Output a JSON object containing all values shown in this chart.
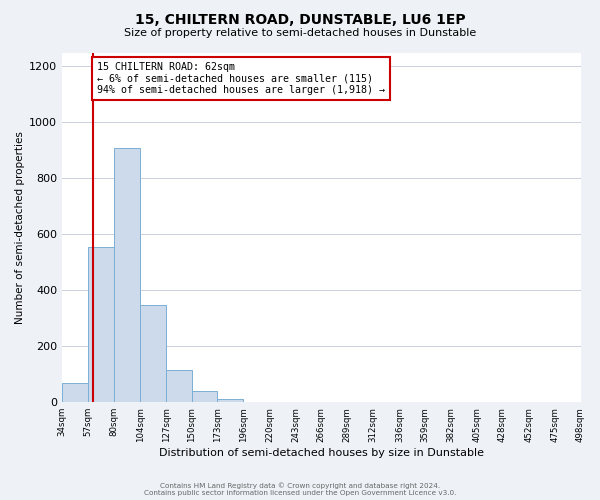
{
  "title": "15, CHILTERN ROAD, DUNSTABLE, LU6 1EP",
  "subtitle": "Size of property relative to semi-detached houses in Dunstable",
  "xlabel": "Distribution of semi-detached houses by size in Dunstable",
  "ylabel": "Number of semi-detached properties",
  "bin_edges": [
    34,
    57,
    80,
    104,
    127,
    150,
    173,
    196,
    220,
    243,
    266,
    289,
    312,
    336,
    359,
    382,
    405,
    428,
    452,
    475,
    498
  ],
  "bar_heights": [
    70,
    555,
    910,
    348,
    115,
    40,
    13,
    0,
    0,
    0,
    0,
    0,
    0,
    0,
    0,
    0,
    0,
    0,
    0,
    0
  ],
  "bar_color": "#ccdaeb",
  "bar_edge_color": "#7aafd4",
  "property_size": 62,
  "marker_color": "#cc0000",
  "annotation_title": "15 CHILTERN ROAD: 62sqm",
  "annotation_line1": "← 6% of semi-detached houses are smaller (115)",
  "annotation_line2": "94% of semi-detached houses are larger (1,918) →",
  "annotation_box_color": "#cc0000",
  "ylim": [
    0,
    1250
  ],
  "yticks": [
    0,
    200,
    400,
    600,
    800,
    1000,
    1200
  ],
  "xtick_labels": [
    "34sqm",
    "57sqm",
    "80sqm",
    "104sqm",
    "127sqm",
    "150sqm",
    "173sqm",
    "196sqm",
    "220sqm",
    "243sqm",
    "266sqm",
    "289sqm",
    "312sqm",
    "336sqm",
    "359sqm",
    "382sqm",
    "405sqm",
    "428sqm",
    "452sqm",
    "475sqm",
    "498sqm"
  ],
  "footer_line1": "Contains HM Land Registry data © Crown copyright and database right 2024.",
  "footer_line2": "Contains public sector information licensed under the Open Government Licence v3.0.",
  "background_color": "#eef2f7",
  "plot_bg_color": "#ffffff",
  "grid_color": "#c8d0dc"
}
